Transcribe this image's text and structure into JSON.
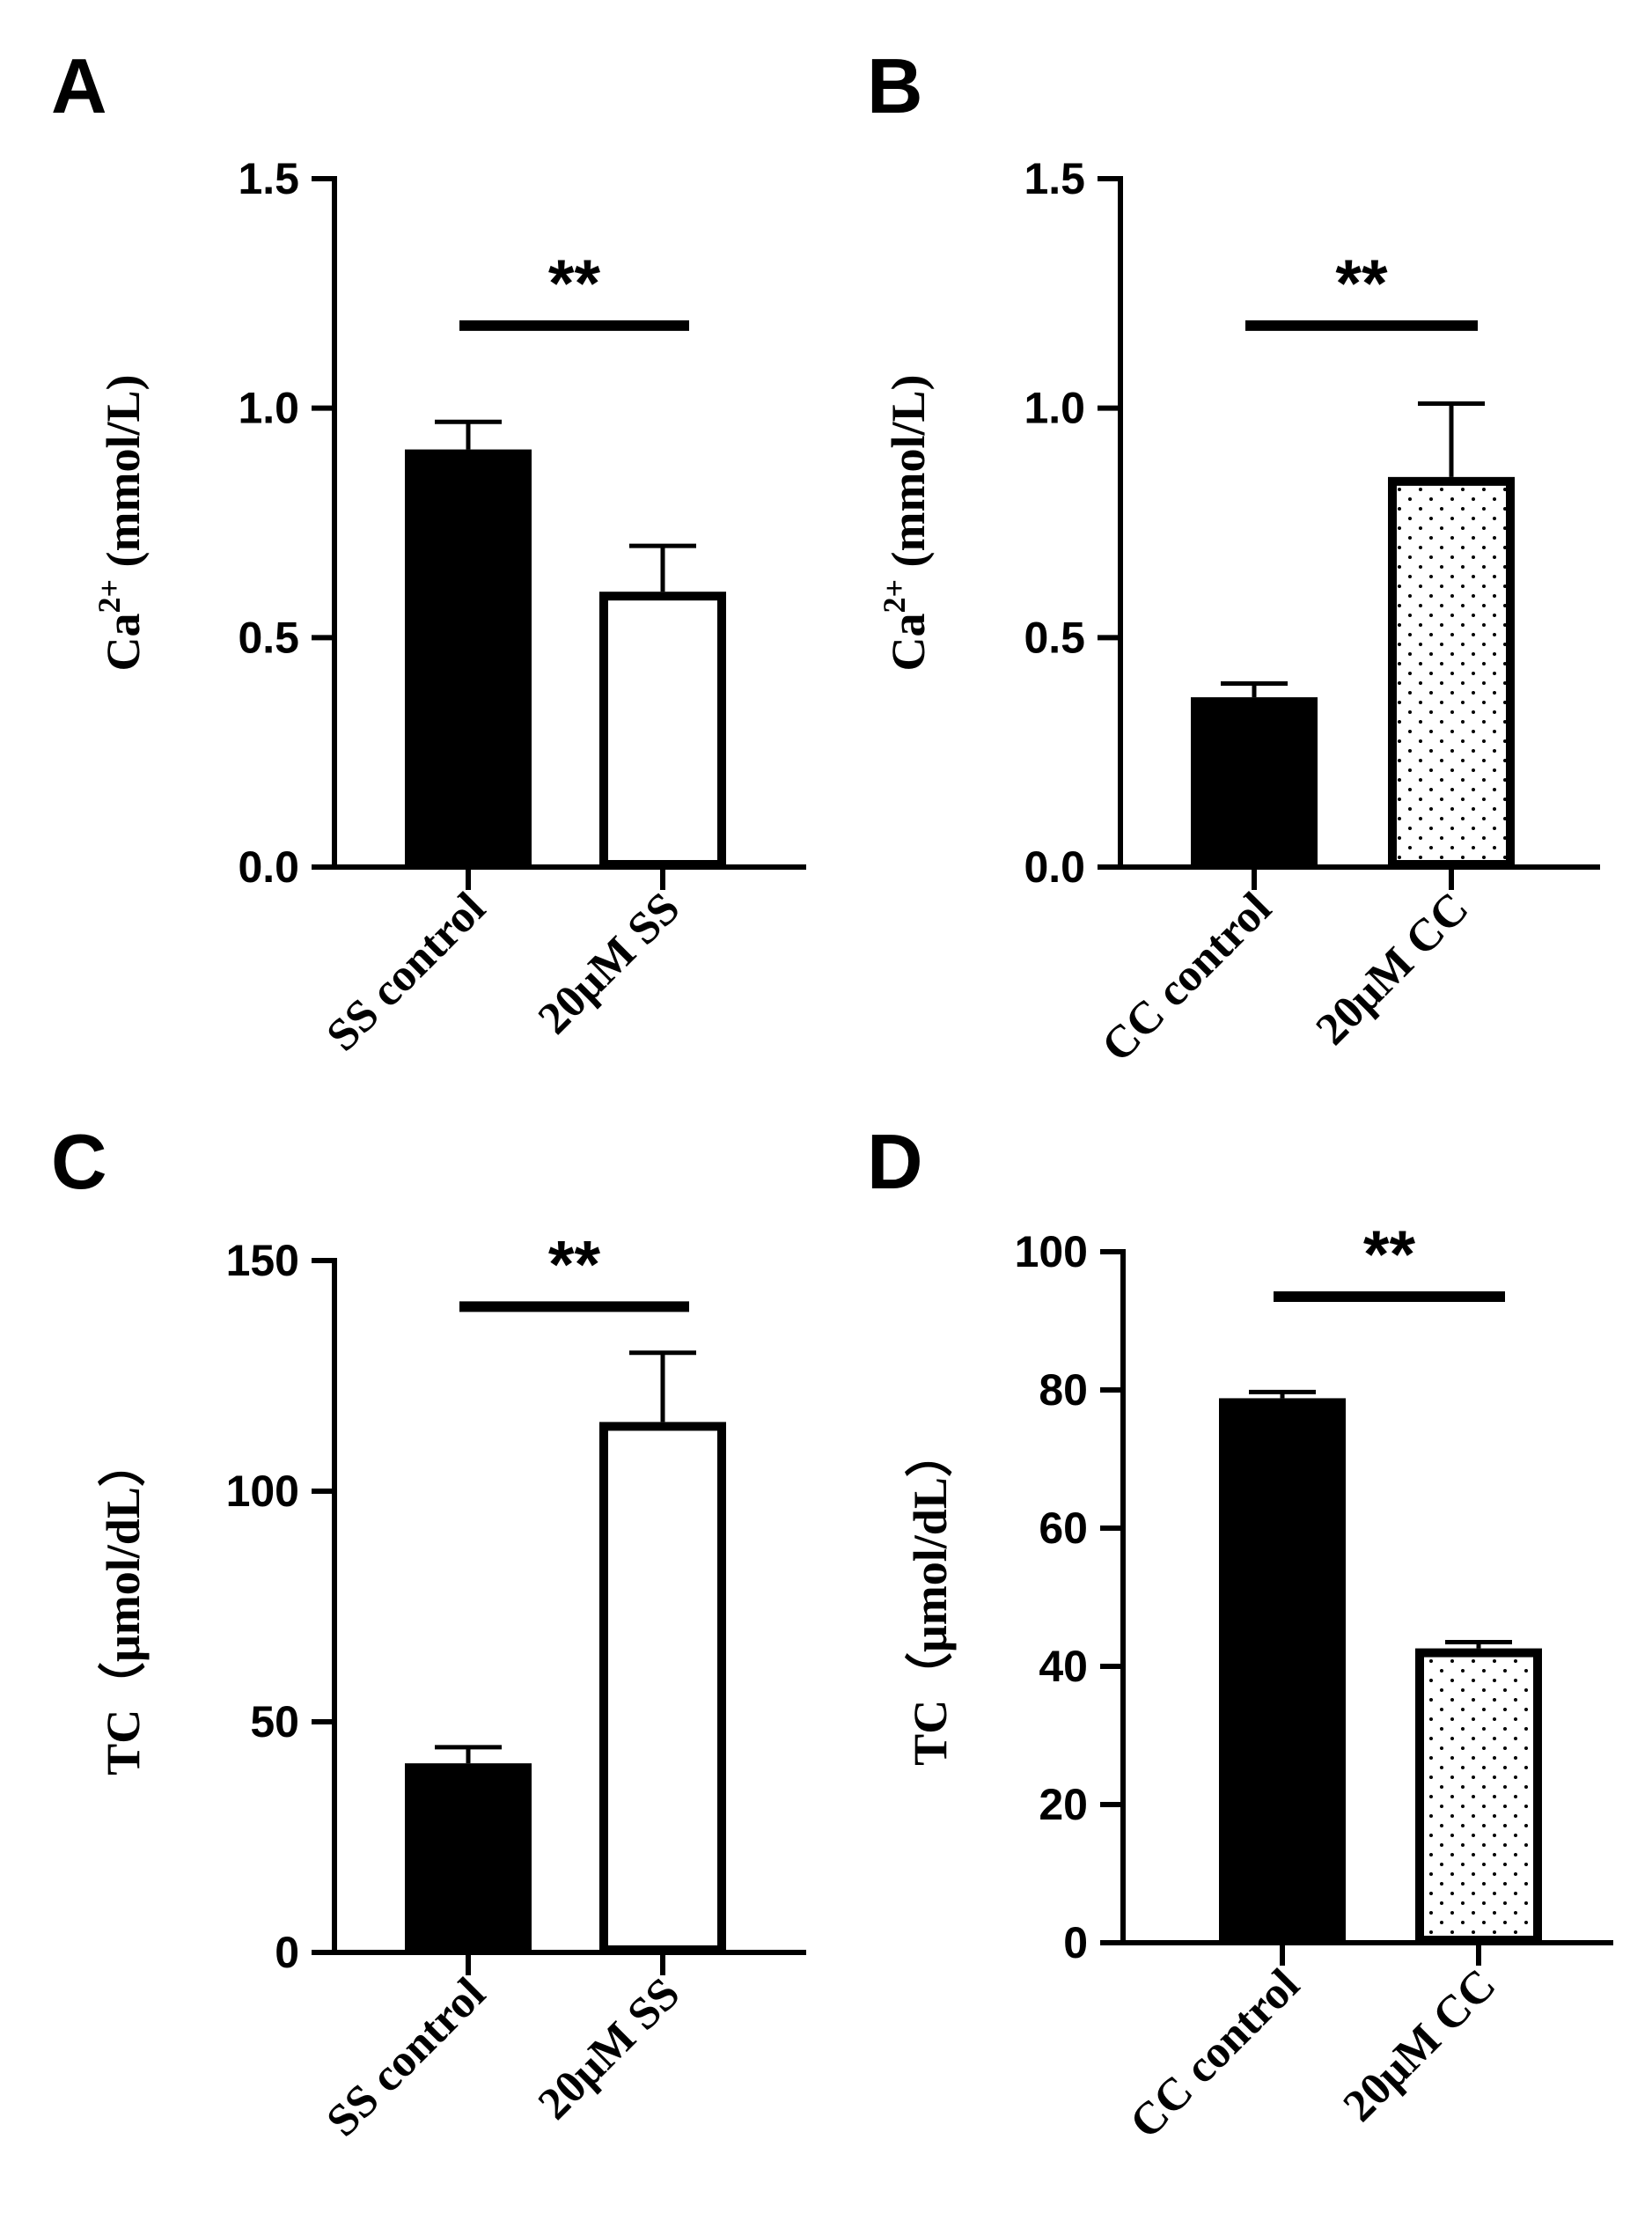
{
  "chart_data": [
    {
      "panel": "A",
      "type": "bar",
      "categories": [
        "SS control",
        "20μM SS"
      ],
      "values": [
        0.91,
        0.6
      ],
      "errors": [
        0.06,
        0.1
      ],
      "fills": [
        "solid",
        "empty"
      ],
      "ylabel": {
        "main": "Ca",
        "sup": "2+",
        "rest": " (mmol/L)"
      },
      "ylim": [
        0,
        1.5
      ],
      "ticks": [
        "0.0",
        "0.5",
        "1.0",
        "1.5"
      ],
      "tick_values": [
        0,
        0.5,
        1.0,
        1.5
      ],
      "significance": {
        "label": "**",
        "y": 1.18
      }
    },
    {
      "panel": "B",
      "type": "bar",
      "categories": [
        "CC control",
        "20μM CC"
      ],
      "values": [
        0.37,
        0.85
      ],
      "errors": [
        0.03,
        0.16
      ],
      "fills": [
        "solid",
        "dotted"
      ],
      "ylabel": {
        "main": "Ca",
        "sup": "2+",
        "rest": " (mmol/L)"
      },
      "ylim": [
        0,
        1.5
      ],
      "ticks": [
        "0.0",
        "0.5",
        "1.0",
        "1.5"
      ],
      "tick_values": [
        0,
        0.5,
        1.0,
        1.5
      ],
      "significance": {
        "label": "**",
        "y": 1.18
      }
    },
    {
      "panel": "C",
      "type": "bar",
      "categories": [
        "SS control",
        "20μM SS"
      ],
      "values": [
        41,
        115
      ],
      "errors": [
        3.5,
        15
      ],
      "fills": [
        "solid",
        "empty"
      ],
      "ylabel": {
        "main": "TC（μmol/dL）",
        "sup": "",
        "rest": ""
      },
      "ylim": [
        0,
        150
      ],
      "ticks": [
        "0",
        "50",
        "100",
        "150"
      ],
      "tick_values": [
        0,
        50,
        100,
        150
      ],
      "significance": {
        "label": "**",
        "y": 140
      }
    },
    {
      "panel": "D",
      "type": "bar",
      "categories": [
        "CC control",
        "20μM CC"
      ],
      "values": [
        78.8,
        42.6
      ],
      "errors": [
        0.9,
        0.9
      ],
      "fills": [
        "solid",
        "dotted"
      ],
      "ylabel": {
        "main": "TC（μmol/dL）",
        "sup": "",
        "rest": ""
      },
      "ylim": [
        0,
        100
      ],
      "ticks": [
        "0",
        "20",
        "40",
        "60",
        "80",
        "100"
      ],
      "tick_values": [
        0,
        20,
        40,
        60,
        80,
        100
      ],
      "significance": {
        "label": "**",
        "y": 93.5
      }
    }
  ]
}
